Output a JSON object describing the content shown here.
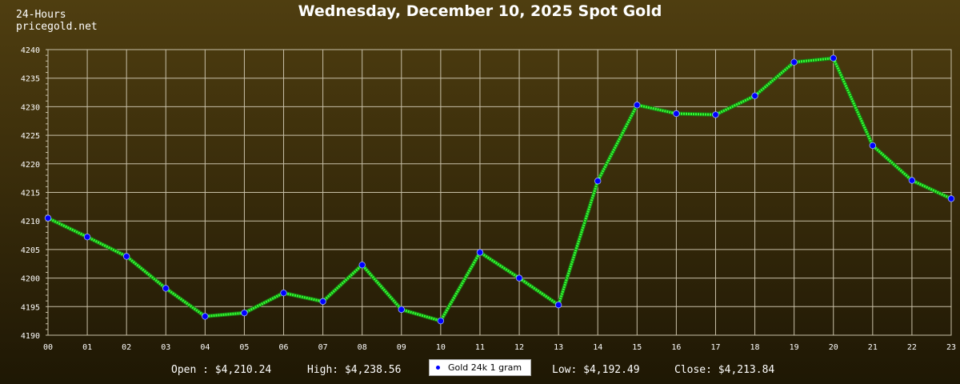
{
  "header": {
    "brand_line1": "24-Hours",
    "brand_line2": "pricegold.net"
  },
  "chart_data": {
    "type": "line",
    "title": "Wednesday, December 10, 2025 Spot Gold",
    "categories": [
      "00",
      "01",
      "02",
      "03",
      "04",
      "05",
      "06",
      "07",
      "08",
      "09",
      "10",
      "11",
      "12",
      "13",
      "14",
      "15",
      "16",
      "17",
      "18",
      "19",
      "20",
      "21",
      "22",
      "23"
    ],
    "series": [
      {
        "name": "Gold 24k 1 gram",
        "values": [
          4210.5,
          4207.2,
          4203.8,
          4198.2,
          4193.3,
          4193.9,
          4197.4,
          4195.9,
          4202.3,
          4194.5,
          4192.5,
          4204.5,
          4200.0,
          4195.3,
          4217.0,
          4230.3,
          4228.8,
          4228.6,
          4231.9,
          4237.8,
          4238.5,
          4223.2,
          4217.1,
          4213.9
        ],
        "line_color": "#33ff33",
        "marker_color": "#0000ff"
      }
    ],
    "ylim": [
      4190,
      4240
    ],
    "yticks": [
      4190,
      4195,
      4200,
      4205,
      4210,
      4215,
      4220,
      4225,
      4230,
      4235,
      4240
    ],
    "grid": true,
    "legend_position": "bottom-center"
  },
  "stats": {
    "open": "Open : $4,210.24",
    "high": "High: $4,238.56",
    "low": "Low: $4,192.49",
    "close": "Close: $4,213.84"
  },
  "colors": {
    "grid": "#c8c0a8",
    "axis_text": "#ffffff"
  }
}
